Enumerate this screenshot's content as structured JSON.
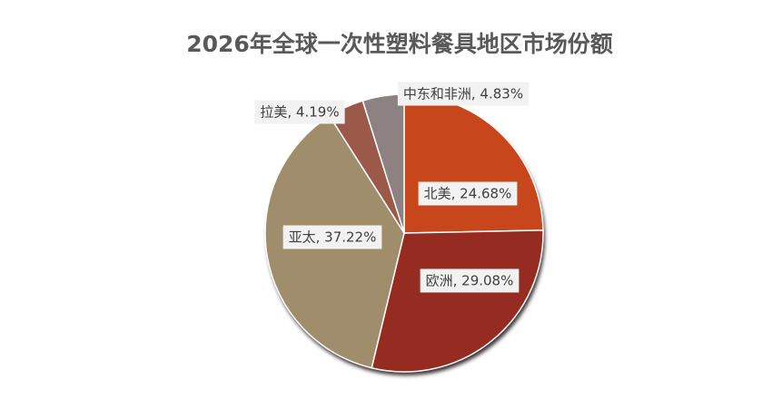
{
  "chart_data": {
    "type": "pie",
    "title": "2026年全球一次性塑料餐具地区市场份额",
    "categories": [
      "北美",
      "欧洲",
      "亚太",
      "拉美",
      "中东和非洲"
    ],
    "values": [
      24.68,
      29.08,
      37.22,
      4.19,
      4.83
    ],
    "value_labels": [
      "北美, 24.68%",
      "欧洲, 29.08%",
      "亚太, 37.22%",
      "拉美, 4.19%",
      "中东和非洲, 4.83%"
    ],
    "colors": [
      "#c8461b",
      "#952b21",
      "#a08d6b",
      "#9b5a49",
      "#8e8181"
    ]
  }
}
